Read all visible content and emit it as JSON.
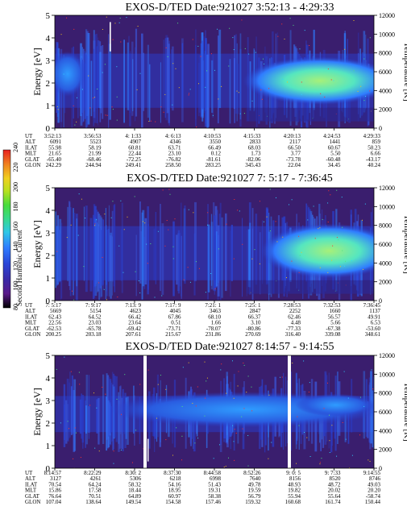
{
  "colors": {
    "background": "#3a1e6e",
    "spectrum_low": "#2a3cc8",
    "spectrum_mid": "#2f7cff",
    "spectrum_high": "#55e6c0",
    "spectrum_peak": "#9ef07a",
    "curve_white": "#ffffff"
  },
  "colorbar": {
    "label": "Second Harmonic Current",
    "ticks": [
      "80",
      "100",
      "120",
      "140",
      "160",
      "180",
      "200",
      "220",
      "240"
    ],
    "stops": [
      "#000000",
      "#5a1a8a",
      "#3a2aa8",
      "#2a46d8",
      "#2f7cff",
      "#2fc8e6",
      "#37d890",
      "#48dc3c",
      "#b8e020",
      "#f0d020",
      "#f08020",
      "#e82020"
    ]
  },
  "chart_data": [
    {
      "type": "heatmap",
      "title": "EXOS-D/TED   Date:921027   3:52:13 - 4:29:33",
      "ylabel": "Energy [eV]",
      "ylim": [
        0,
        5
      ],
      "y_ticks": [
        "0",
        "1",
        "2",
        "3",
        "4",
        "5"
      ],
      "y2label": "Temperature [K]",
      "y2lim": [
        0,
        12000
      ],
      "y2_ticks": [
        "0",
        "2000",
        "4000",
        "6000",
        "8000",
        "10000",
        "12000"
      ],
      "table": {
        "row_labels": [
          "UT",
          "ALT",
          "ILAT",
          "MLT",
          "GLAT",
          "GLON"
        ],
        "columns": [
          [
            "3:52:13",
            "6091",
            "55.98",
            "21.65",
            "-65.40",
            "242.29"
          ],
          [
            "3:56:53",
            "5523",
            "58.19",
            "21.99",
            "-68.46",
            "244.94"
          ],
          [
            "4: 1:33",
            "4907",
            "60.81",
            "22.44",
            "-72.25",
            "249.41"
          ],
          [
            "4: 6:13",
            "4346",
            "63.71",
            "23.10",
            "-76.82",
            "258.50"
          ],
          [
            "4:10:53",
            "3550",
            "66.49",
            "0.12",
            "-81.61",
            "283.25"
          ],
          [
            "4:15:33",
            "2833",
            "68.03",
            "1.73",
            "-82.06",
            "345.43"
          ],
          [
            "4:20:13",
            "2117",
            "66.50",
            "3.77",
            "-73.78",
            "22.04"
          ],
          [
            "4:24:53",
            "1441",
            "60.67",
            "5.50",
            "-60.48",
            "34.45"
          ],
          [
            "4:29:33",
            "859",
            "50.23",
            "6.66",
            "-43.17",
            "40.24"
          ]
        ]
      }
    },
    {
      "type": "heatmap",
      "title": "EXOS-D/TED   Date:921027   7: 5:17 - 7:36:45",
      "ylabel": "Energy [eV]",
      "ylim": [
        0,
        5
      ],
      "y_ticks": [
        "0",
        "1",
        "2",
        "3",
        "4",
        "5"
      ],
      "y2label": "Temperature [K]",
      "y2lim": [
        0,
        12000
      ],
      "y2_ticks": [
        "0",
        "2000",
        "4000",
        "6000",
        "8000",
        "10000",
        "12000"
      ],
      "table": {
        "row_labels": [
          "UT",
          "ALT",
          "ILAT",
          "MLT",
          "GLAT",
          "GLON"
        ],
        "columns": [
          [
            "7: 5:17",
            "5669",
            "62.43",
            "22.56",
            "-62.53",
            "200.25"
          ],
          [
            "7: 9:17",
            "5154",
            "64.52",
            "23.03",
            "-65.78",
            "203.18"
          ],
          [
            "7:13: 9",
            "4623",
            "66.42",
            "23.64",
            "-69.42",
            "207.61"
          ],
          [
            "7:17: 9",
            "4045",
            "67.86",
            "0.51",
            "-73.71",
            "215.67"
          ],
          [
            "7:21: 1",
            "3463",
            "68.10",
            "1.66",
            "-78.07",
            "231.86"
          ],
          [
            "7:25: 1",
            "2847",
            "66.37",
            "3.10",
            "-80.86",
            "270.69"
          ],
          [
            "7:28:53",
            "2252",
            "62.46",
            "4.48",
            "-77.33",
            "316.40"
          ],
          [
            "7:32:53",
            "1660",
            "56.57",
            "5.66",
            "-67.38",
            "339.08"
          ],
          [
            "7:36:45",
            "1137",
            "49.91",
            "6.53",
            "-53.60",
            "348.61"
          ]
        ]
      }
    },
    {
      "type": "heatmap",
      "title": "EXOS-D/TED   Date:921027   8:14:57 - 9:14:55",
      "ylabel": "Energy [eV]",
      "ylim": [
        0,
        5
      ],
      "y_ticks": [
        "0",
        "1",
        "2",
        "3",
        "4",
        "5"
      ],
      "y2label": "Temperature [K]",
      "y2lim": [
        0,
        12000
      ],
      "y2_ticks": [
        "0",
        "2000",
        "4000",
        "6000",
        "8000",
        "10000",
        "12000"
      ],
      "table": {
        "row_labels": [
          "UT",
          "ALT",
          "ILAT",
          "MLT",
          "GLAT",
          "GLON"
        ],
        "columns": [
          [
            "8:14:57",
            "3127",
            "70.54",
            "15.86",
            "76.64",
            "107.04"
          ],
          [
            "8:22:29",
            "4261",
            "64.24",
            "17.58",
            "70.51",
            "138.64"
          ],
          [
            "8:30: 2",
            "5306",
            "58.32",
            "18.44",
            "64.89",
            "149.54"
          ],
          [
            "8:37:30",
            "6218",
            "54.16",
            "18.95",
            "60.97",
            "154.58"
          ],
          [
            "8:44:58",
            "6998",
            "51.43",
            "19.31",
            "58.38",
            "157.46"
          ],
          [
            "8:52:26",
            "7640",
            "49.78",
            "19.59",
            "56.79",
            "159.32"
          ],
          [
            "9: 0: 5",
            "8156",
            "48.93",
            "19.82",
            "55.94",
            "160.68"
          ],
          [
            "9: 7:33",
            "8520",
            "48.72",
            "20.02",
            "55.64",
            "161.74"
          ],
          [
            "9:14:55",
            "8746",
            "49.03",
            "20.20",
            "-58.74",
            "150.44"
          ]
        ]
      }
    }
  ]
}
